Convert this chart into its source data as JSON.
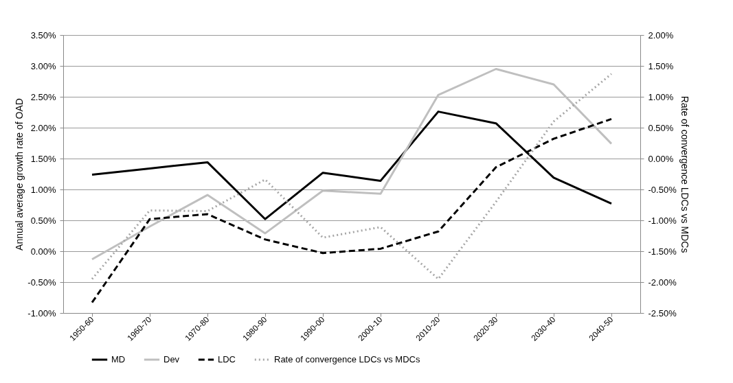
{
  "chart_data": {
    "type": "line",
    "ylabel": "Annual average growth rate of OAD",
    "y2label": "Rate of convergence LDCs vs MDCs",
    "categories": [
      "1950-60",
      "1960-70",
      "1970-80",
      "1980-90",
      "1990-00",
      "2000-10",
      "2010-20",
      "2020-30",
      "2030-40",
      "2040-50"
    ],
    "series": [
      {
        "name": "MD",
        "color": "#000000",
        "line_style": "solid",
        "values": [
          1.24,
          1.34,
          1.44,
          0.52,
          1.27,
          1.14,
          2.26,
          2.07,
          1.19,
          0.77
        ]
      },
      {
        "name": "Dev",
        "color": "#bfbfbf",
        "line_style": "solid",
        "values": [
          -0.13,
          0.4,
          0.91,
          0.29,
          0.98,
          0.93,
          2.53,
          2.95,
          2.7,
          1.74
        ]
      },
      {
        "name": "LDC",
        "color": "#000000",
        "line_style": "dashed",
        "values": [
          -0.83,
          0.52,
          0.6,
          0.19,
          -0.03,
          0.04,
          0.32,
          1.36,
          1.82,
          2.14
        ]
      },
      {
        "name": "Rate of convergence LDCs vs MDCs",
        "color": "#a6a6a6",
        "line_style": "dotted",
        "axis": "y2",
        "values": [
          -1.95,
          -0.84,
          -0.85,
          -0.34,
          -1.28,
          -1.11,
          -1.95,
          -0.7,
          0.6,
          1.37
        ]
      }
    ],
    "ylim": [
      -1,
      3.5
    ],
    "yticks": [
      {
        "value": -1,
        "label": "-1.00%"
      },
      {
        "value": -0.5,
        "label": "-0.50%"
      },
      {
        "value": 0,
        "label": "0.00%"
      },
      {
        "value": 0.5,
        "label": "0.50%"
      },
      {
        "value": 1,
        "label": "1.00%"
      },
      {
        "value": 1.5,
        "label": "1.50%"
      },
      {
        "value": 2,
        "label": "2.00%"
      },
      {
        "value": 2.5,
        "label": "2.50%"
      },
      {
        "value": 3,
        "label": "3.00%"
      },
      {
        "value": 3.5,
        "label": "3.50%"
      }
    ],
    "y2lim": [
      -2.5,
      2
    ],
    "y2ticks": [
      {
        "value": -2.5,
        "label": "-2.50%"
      },
      {
        "value": -2,
        "label": "-2.00%"
      },
      {
        "value": -1.5,
        "label": "-1.50%"
      },
      {
        "value": -1,
        "label": "-1.00%"
      },
      {
        "value": -0.5,
        "label": "-0.50%"
      },
      {
        "value": 0,
        "label": "0.00%"
      },
      {
        "value": 0.5,
        "label": "0.50%"
      },
      {
        "value": 1,
        "label": "1.00%"
      },
      {
        "value": 1.5,
        "label": "1.50%"
      },
      {
        "value": 2,
        "label": "2.00%"
      }
    ],
    "grid": "y",
    "legend": "bottom",
    "marker": "none"
  }
}
